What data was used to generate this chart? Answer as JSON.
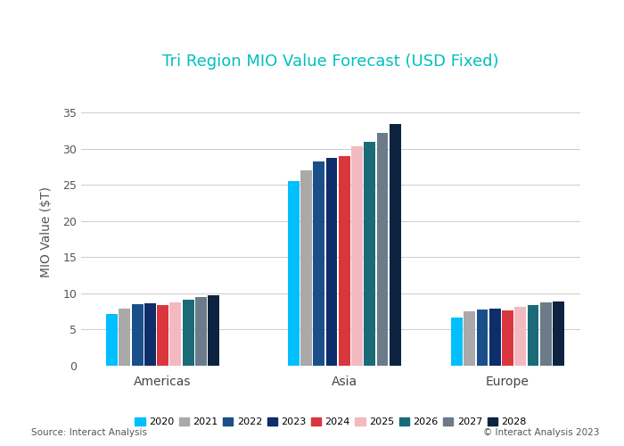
{
  "title": "Tri Region MIO Value Forecast (USD Fixed)",
  "title_color": "#00BFBF",
  "ylabel": "MIO Value ($T)",
  "regions": [
    "Americas",
    "Asia",
    "Europe"
  ],
  "years": [
    "2020",
    "2021",
    "2022",
    "2023",
    "2024",
    "2025",
    "2026",
    "2027",
    "2028"
  ],
  "bar_colors": [
    "#00BFFF",
    "#A9A9A9",
    "#1B4F8A",
    "#0D2D6B",
    "#D9363E",
    "#F4B8C1",
    "#1A6B78",
    "#6B7B8A",
    "#0D2340"
  ],
  "values": {
    "Americas": [
      7.1,
      7.9,
      8.5,
      8.6,
      8.4,
      8.8,
      9.1,
      9.5,
      9.8
    ],
    "Asia": [
      25.5,
      27.0,
      28.2,
      28.7,
      29.0,
      30.3,
      31.0,
      32.2,
      33.4
    ],
    "Europe": [
      6.6,
      7.5,
      7.8,
      7.9,
      7.7,
      8.1,
      8.4,
      8.7,
      8.9
    ]
  },
  "ylim": [
    0,
    37
  ],
  "yticks": [
    0,
    5,
    10,
    15,
    20,
    25,
    30,
    35
  ],
  "source_left": "Source: Interact Analysis",
  "source_right": "© Interact Analysis 2023",
  "background_color": "#FFFFFF",
  "gridcolor": "#CCCCCC",
  "bar_width": 0.07,
  "region_centers": [
    0.35,
    1.35,
    2.25
  ]
}
